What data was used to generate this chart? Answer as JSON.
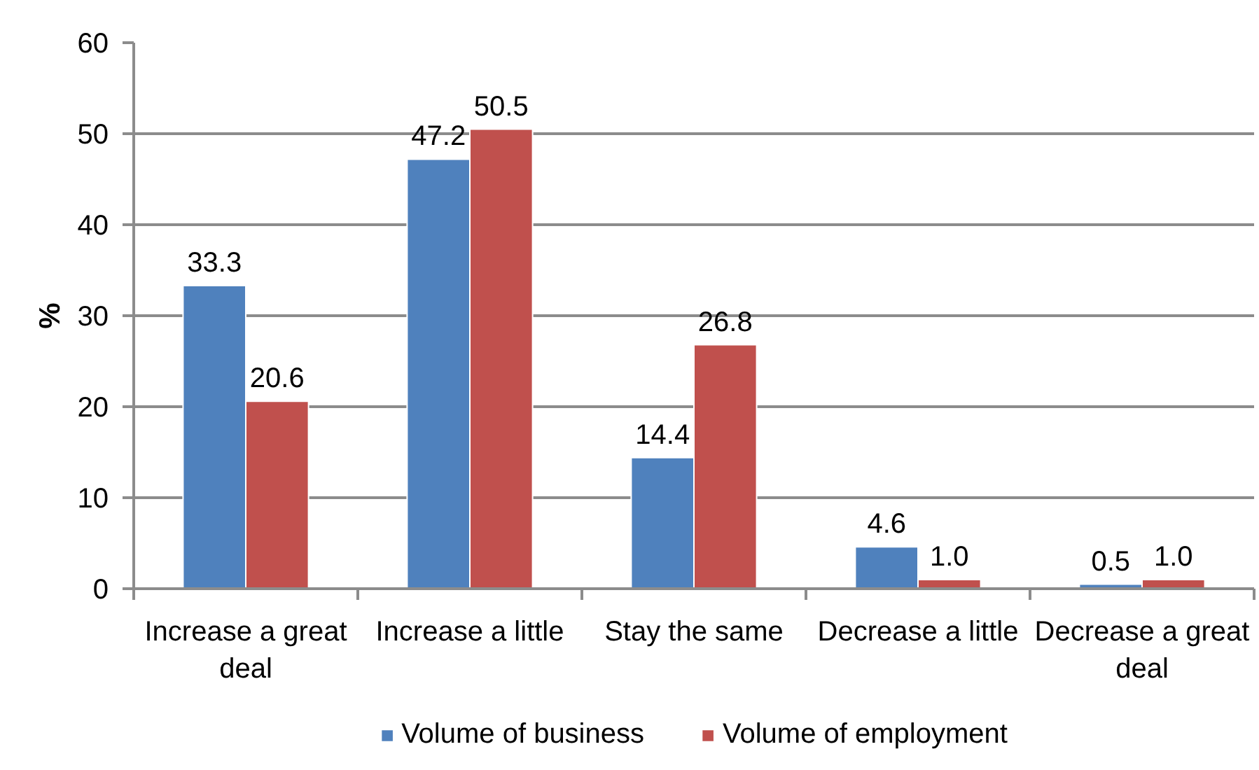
{
  "chart_data": {
    "type": "bar",
    "ylabel": "%",
    "categories": [
      "Increase a great deal",
      "Increase a little",
      "Stay the same",
      "Decrease a little",
      "Decrease a great deal"
    ],
    "series": [
      {
        "name": "Volume of business",
        "color": "#4f81bd",
        "values": [
          33.3,
          47.2,
          14.4,
          4.6,
          0.5
        ],
        "value_labels": [
          "33.3",
          "47.2",
          "14.4",
          "4.6",
          "0.5"
        ]
      },
      {
        "name": "Volume of employment",
        "color": "#c0504d",
        "values": [
          20.6,
          50.5,
          26.8,
          1.0,
          1.0
        ],
        "value_labels": [
          "20.6",
          "50.5",
          "26.8",
          "1.0",
          "1.0"
        ]
      }
    ],
    "ylim": [
      0,
      60
    ],
    "yticks": [
      0,
      10,
      20,
      30,
      40,
      50,
      60
    ],
    "grid": "y",
    "legend": "bottom"
  }
}
